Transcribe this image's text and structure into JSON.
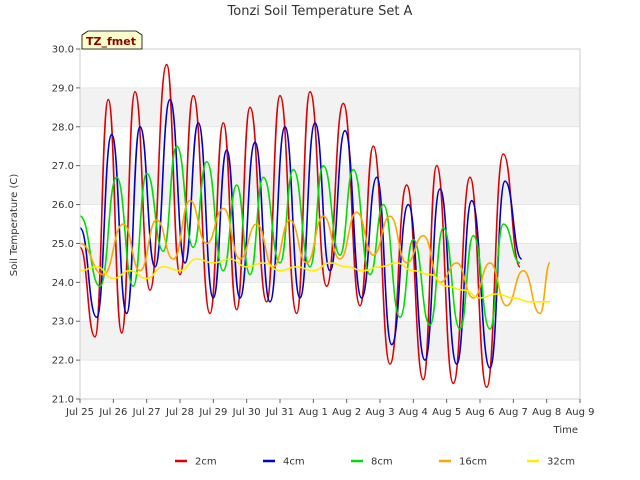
{
  "chart_data": {
    "type": "line",
    "title": "Tonzi Soil Temperature Set A",
    "xlabel": "Time",
    "ylabel": "Soil Temperature (C)",
    "ylim": [
      21.0,
      30.0
    ],
    "xlim": [
      0,
      15
    ],
    "y_ticks": [
      "21.0",
      "22.0",
      "23.0",
      "24.0",
      "25.0",
      "26.0",
      "27.0",
      "28.0",
      "29.0",
      "30.0"
    ],
    "x_ticks": [
      "Jul 25",
      "Jul 26",
      "Jul 27",
      "Jul 28",
      "Jul 29",
      "Jul 30",
      "Jul 31",
      "Aug 1",
      "Aug 2",
      "Aug 3",
      "Aug 4",
      "Aug 5",
      "Aug 6",
      "Aug 7",
      "Aug 8",
      "Aug 9"
    ],
    "grid": "horizontal bands",
    "legend_position": "bottom",
    "annotation": "TZ_fmet",
    "series": [
      {
        "name": "2cm",
        "color": "#dd0000",
        "x": [
          0.0,
          0.45,
          0.85,
          1.25,
          1.65,
          2.1,
          2.6,
          3.0,
          3.4,
          3.9,
          4.3,
          4.7,
          5.1,
          5.6,
          6.0,
          6.5,
          6.9,
          7.4,
          7.9,
          8.4,
          8.8,
          9.3,
          9.8,
          10.3,
          10.7,
          11.2,
          11.7,
          12.2,
          12.7,
          13.2,
          13.6,
          14.1
        ],
        "y": [
          24.9,
          22.6,
          28.7,
          22.7,
          28.9,
          23.8,
          29.6,
          24.2,
          28.8,
          23.2,
          28.1,
          23.3,
          28.5,
          23.5,
          28.8,
          23.2,
          28.9,
          23.9,
          28.6,
          23.4,
          27.5,
          21.9,
          26.5,
          21.5,
          27.0,
          21.4,
          26.7,
          21.3,
          27.3,
          24.4,
          null,
          null
        ]
      },
      {
        "name": "4cm",
        "color": "#0000cc",
        "x": [
          0.0,
          0.5,
          0.95,
          1.4,
          1.8,
          2.25,
          2.7,
          3.15,
          3.55,
          4.0,
          4.4,
          4.8,
          5.25,
          5.7,
          6.15,
          6.6,
          7.05,
          7.5,
          7.95,
          8.45,
          8.9,
          9.35,
          9.85,
          10.35,
          10.8,
          11.3,
          11.75,
          12.3,
          12.75,
          13.25,
          13.7,
          14.1
        ],
        "y": [
          25.4,
          23.1,
          27.8,
          23.2,
          28.0,
          24.4,
          28.7,
          24.5,
          28.1,
          23.6,
          27.4,
          23.6,
          27.6,
          23.5,
          28.0,
          23.6,
          28.1,
          24.3,
          27.9,
          23.6,
          26.7,
          22.4,
          26.0,
          22.0,
          26.4,
          21.9,
          26.1,
          21.8,
          26.6,
          24.6,
          null,
          null
        ]
      },
      {
        "name": "8cm",
        "color": "#00dd00",
        "x": [
          0.0,
          0.6,
          1.1,
          1.6,
          2.0,
          2.5,
          2.9,
          3.4,
          3.8,
          4.3,
          4.7,
          5.1,
          5.5,
          6.0,
          6.4,
          6.9,
          7.3,
          7.8,
          8.2,
          8.7,
          9.1,
          9.6,
          10.0,
          10.5,
          10.9,
          11.4,
          11.8,
          12.3,
          12.7,
          13.2,
          13.6,
          14.0
        ],
        "y": [
          25.7,
          23.9,
          26.7,
          23.9,
          26.8,
          24.8,
          27.5,
          24.9,
          27.1,
          24.3,
          26.5,
          24.2,
          26.7,
          24.5,
          26.9,
          24.4,
          27.0,
          24.7,
          26.9,
          24.2,
          26.0,
          23.1,
          25.1,
          22.9,
          25.4,
          22.8,
          25.2,
          22.8,
          25.5,
          24.5,
          null,
          null
        ]
      },
      {
        "name": "16cm",
        "color": "#ffa500",
        "x": [
          0.0,
          0.7,
          1.3,
          1.8,
          2.3,
          2.8,
          3.3,
          3.8,
          4.3,
          4.8,
          5.3,
          5.8,
          6.3,
          6.8,
          7.3,
          7.8,
          8.3,
          8.8,
          9.3,
          9.8,
          10.3,
          10.8,
          11.3,
          11.8,
          12.3,
          12.8,
          13.3,
          13.8,
          14.1
        ],
        "y": [
          25.0,
          24.2,
          25.5,
          24.3,
          25.6,
          24.6,
          26.1,
          25.0,
          25.9,
          24.6,
          25.5,
          24.4,
          25.6,
          24.5,
          25.7,
          24.6,
          25.8,
          24.7,
          25.7,
          24.5,
          25.2,
          24.0,
          24.5,
          23.6,
          24.5,
          23.4,
          24.3,
          23.2,
          24.5
        ]
      },
      {
        "name": "32cm",
        "color": "#ffee00",
        "x": [
          0.0,
          0.5,
          1.0,
          1.5,
          2.0,
          2.5,
          3.0,
          3.5,
          4.0,
          4.5,
          5.0,
          5.5,
          6.0,
          6.5,
          7.0,
          7.5,
          8.0,
          8.5,
          9.0,
          9.5,
          10.0,
          10.5,
          11.0,
          11.5,
          12.0,
          12.5,
          13.0,
          13.5,
          14.1
        ],
        "y": [
          24.3,
          24.4,
          24.1,
          24.3,
          24.1,
          24.4,
          24.3,
          24.6,
          24.5,
          24.6,
          24.4,
          24.5,
          24.3,
          24.4,
          24.3,
          24.5,
          24.4,
          24.3,
          24.4,
          24.5,
          24.3,
          24.2,
          23.9,
          23.8,
          23.6,
          23.7,
          23.6,
          23.5,
          23.5
        ]
      }
    ]
  }
}
